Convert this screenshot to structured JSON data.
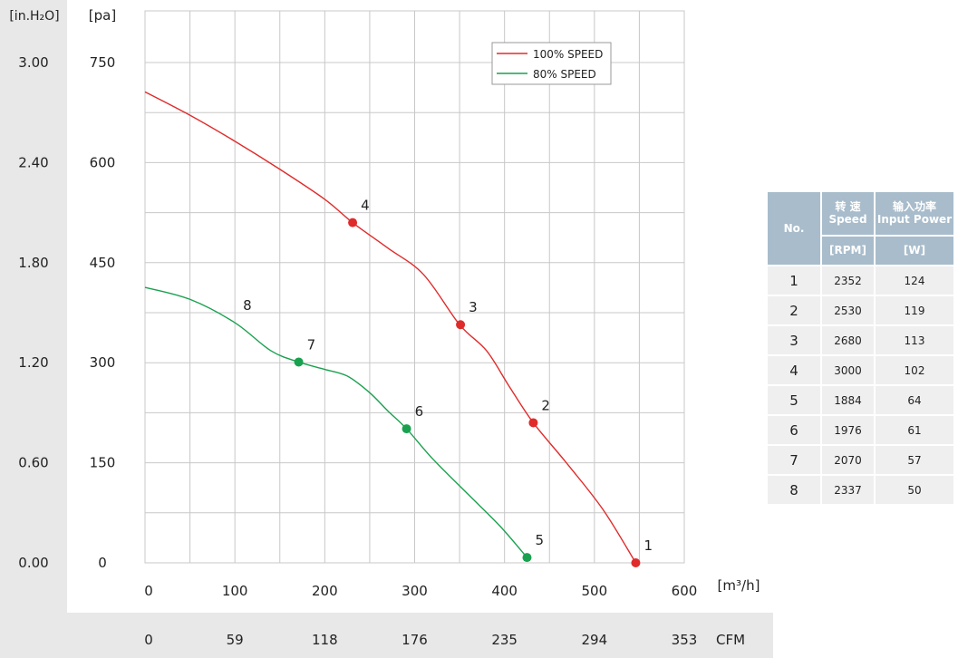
{
  "units": {
    "y_left": "[in.H₂O]",
    "y_right": "[pa]",
    "x_top": "[m³/h]",
    "x_bottom": "CFM"
  },
  "legend": [
    {
      "label": "100% SPEED",
      "color": "#e02b2b"
    },
    {
      "label": "80%   SPEED",
      "color": "#1aa14f"
    }
  ],
  "chart_data": {
    "type": "line",
    "xlabel": "[m³/h]",
    "ylabel": "[pa]",
    "xlim": [
      0,
      600
    ],
    "ylim": [
      0,
      750
    ],
    "grid": true,
    "legend_position": "top-right",
    "x_ticks": [
      "0",
      "100",
      "200",
      "300",
      "400",
      "500",
      "600"
    ],
    "y_ticks_pa": [
      "0",
      "150",
      "300",
      "450",
      "600",
      "750"
    ],
    "y_ticks_inh2o": [
      "0.00",
      "0.60",
      "1.20",
      "1.80",
      "2.40",
      "3.00"
    ],
    "cfm_ticks": [
      "0",
      "59",
      "118",
      "176",
      "235",
      "294",
      "353"
    ],
    "series": [
      {
        "name": "100% SPEED",
        "color": "#e02b2b",
        "curve": [
          [
            0,
            706
          ],
          [
            50,
            671
          ],
          [
            100,
            632
          ],
          [
            150,
            590
          ],
          [
            200,
            545
          ],
          [
            231,
            510
          ],
          [
            270,
            472
          ],
          [
            310,
            432
          ],
          [
            350,
            357
          ],
          [
            380,
            318
          ],
          [
            405,
            265
          ],
          [
            432,
            210
          ],
          [
            470,
            148
          ],
          [
            510,
            79
          ],
          [
            546,
            0
          ]
        ],
        "points": [
          {
            "label": "1",
            "x": 546,
            "y": 0
          },
          {
            "label": "2",
            "x": 432,
            "y": 210
          },
          {
            "label": "3",
            "x": 351,
            "y": 357
          },
          {
            "label": "4",
            "x": 231,
            "y": 510
          }
        ]
      },
      {
        "name": "80%   SPEED",
        "color": "#1aa14f",
        "curve": [
          [
            0,
            413
          ],
          [
            50,
            395
          ],
          [
            100,
            360
          ],
          [
            140,
            318
          ],
          [
            171,
            301
          ],
          [
            200,
            290
          ],
          [
            225,
            280
          ],
          [
            250,
            255
          ],
          [
            270,
            228
          ],
          [
            291,
            201
          ],
          [
            320,
            156
          ],
          [
            360,
            102
          ],
          [
            395,
            55
          ],
          [
            425,
            8
          ]
        ],
        "points": [
          {
            "label": "5",
            "x": 425,
            "y": 8
          },
          {
            "label": "6",
            "x": 291,
            "y": 201
          },
          {
            "label": "7",
            "x": 171,
            "y": 301
          },
          {
            "label": "8",
            "x": 100,
            "y": 360,
            "marker": false
          }
        ]
      }
    ]
  },
  "table": {
    "head": {
      "no": "No.",
      "speed_cn": "转 速",
      "speed_en": "Speed",
      "power_cn": "输入功率",
      "power_en": "Input Power",
      "rpm_unit": "[RPM]",
      "w_unit": "[W]"
    },
    "rows": [
      {
        "no": "1",
        "rpm": "2352",
        "w": "124"
      },
      {
        "no": "2",
        "rpm": "2530",
        "w": "119"
      },
      {
        "no": "3",
        "rpm": "2680",
        "w": "113"
      },
      {
        "no": "4",
        "rpm": "3000",
        "w": "102"
      },
      {
        "no": "5",
        "rpm": "1884",
        "w": "64"
      },
      {
        "no": "6",
        "rpm": "1976",
        "w": "61"
      },
      {
        "no": "7",
        "rpm": "2070",
        "w": "57"
      },
      {
        "no": "8",
        "rpm": "2337",
        "w": "50"
      }
    ]
  }
}
